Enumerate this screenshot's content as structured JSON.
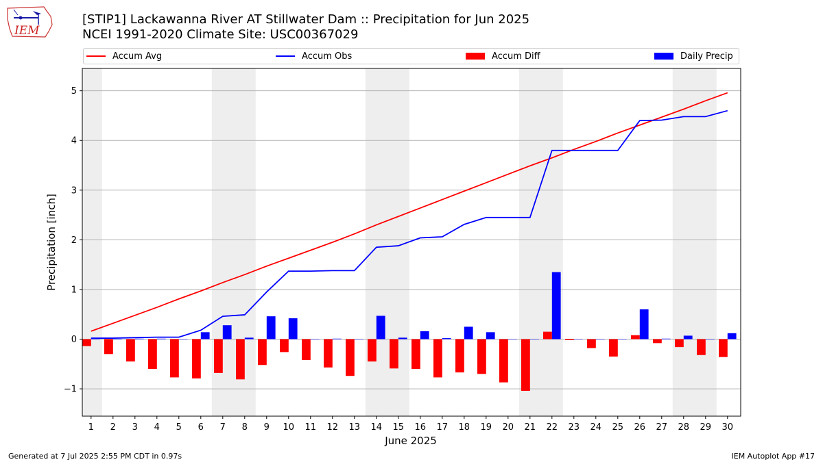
{
  "header": {
    "title_line1": "[STIP1] Lackawanna River  AT Stillwater Dam :: Precipitation for Jun 2025",
    "title_line2": "NCEI 1991-2020 Climate Site: USC00367029"
  },
  "logo": {
    "text": "IEM",
    "icon": "iowa-state-outline-logo"
  },
  "footer": {
    "left": "Generated at 7 Jul 2025 2:55 PM CDT in 0.97s",
    "right": "IEM Autoplot App #17"
  },
  "colors": {
    "accum_avg": "#ff0000",
    "accum_obs": "#0000ff",
    "accum_diff": "#ff0000",
    "daily_precip": "#0000ff",
    "weekend_shade": "#eeeeee",
    "grid": "#b0b0b0"
  },
  "chart_data": {
    "type": "bar",
    "xlabel": "June 2025",
    "ylabel": "Precipitation [inch]",
    "ylim": [
      -1.55,
      5.45
    ],
    "y_ticks": [
      {
        "value": -1,
        "label": "−1"
      },
      {
        "value": 0,
        "label": "0"
      },
      {
        "value": 1,
        "label": "1"
      },
      {
        "value": 2,
        "label": "2"
      },
      {
        "value": 3,
        "label": "3"
      },
      {
        "value": 4,
        "label": "4"
      },
      {
        "value": 5,
        "label": "5"
      }
    ],
    "grid": "horizontal",
    "legend": {
      "placement": "top",
      "entries": [
        {
          "name": "Accum Avg",
          "kind": "line",
          "color": "#ff0000"
        },
        {
          "name": "Accum Obs",
          "kind": "line",
          "color": "#0000ff"
        },
        {
          "name": "Accum Diff",
          "kind": "bar",
          "color": "#ff0000"
        },
        {
          "name": "Daily Precip",
          "kind": "bar",
          "color": "#0000ff"
        }
      ]
    },
    "days": [
      1,
      2,
      3,
      4,
      5,
      6,
      7,
      8,
      9,
      10,
      11,
      12,
      13,
      14,
      15,
      16,
      17,
      18,
      19,
      20,
      21,
      22,
      23,
      24,
      25,
      26,
      27,
      28,
      29,
      30
    ],
    "shaded_day_ranges": [
      [
        0.5,
        1.5
      ],
      [
        6.5,
        8.5
      ],
      [
        13.5,
        15.5
      ],
      [
        20.5,
        22.5
      ],
      [
        27.5,
        29.5
      ]
    ],
    "series": [
      {
        "name": "Accum Avg",
        "kind": "line",
        "values": [
          0.16,
          0.32,
          0.48,
          0.64,
          0.81,
          0.97,
          1.14,
          1.3,
          1.47,
          1.63,
          1.79,
          1.95,
          2.12,
          2.3,
          2.47,
          2.64,
          2.81,
          2.98,
          3.15,
          3.32,
          3.49,
          3.65,
          3.82,
          3.98,
          4.15,
          4.31,
          4.47,
          4.63,
          4.8,
          4.96
        ]
      },
      {
        "name": "Accum Obs",
        "kind": "line",
        "values": [
          0.02,
          0.02,
          0.03,
          0.04,
          0.04,
          0.18,
          0.46,
          0.49,
          0.95,
          1.37,
          1.37,
          1.38,
          1.38,
          1.85,
          1.88,
          2.04,
          2.06,
          2.31,
          2.45,
          2.45,
          2.45,
          3.8,
          3.8,
          3.8,
          3.8,
          4.4,
          4.41,
          4.48,
          4.48,
          4.6
        ]
      },
      {
        "name": "Accum Diff",
        "kind": "bar",
        "values": [
          -0.14,
          -0.3,
          -0.45,
          -0.6,
          -0.77,
          -0.79,
          -0.68,
          -0.81,
          -0.52,
          -0.26,
          -0.42,
          -0.57,
          -0.74,
          -0.45,
          -0.59,
          -0.6,
          -0.77,
          -0.67,
          -0.7,
          -0.87,
          -1.04,
          0.15,
          -0.02,
          -0.18,
          -0.35,
          0.08,
          -0.08,
          -0.16,
          -0.32,
          -0.36
        ]
      },
      {
        "name": "Daily Precip",
        "kind": "bar",
        "values": [
          0.02,
          0.0,
          0.01,
          0.01,
          0.0,
          0.14,
          0.28,
          0.03,
          0.46,
          0.42,
          0.0,
          0.01,
          0.0,
          0.47,
          0.03,
          0.16,
          0.02,
          0.25,
          0.14,
          0.0,
          0.0,
          1.35,
          0.0,
          0.0,
          0.0,
          0.6,
          0.01,
          0.07,
          0.0,
          0.12
        ]
      }
    ]
  }
}
